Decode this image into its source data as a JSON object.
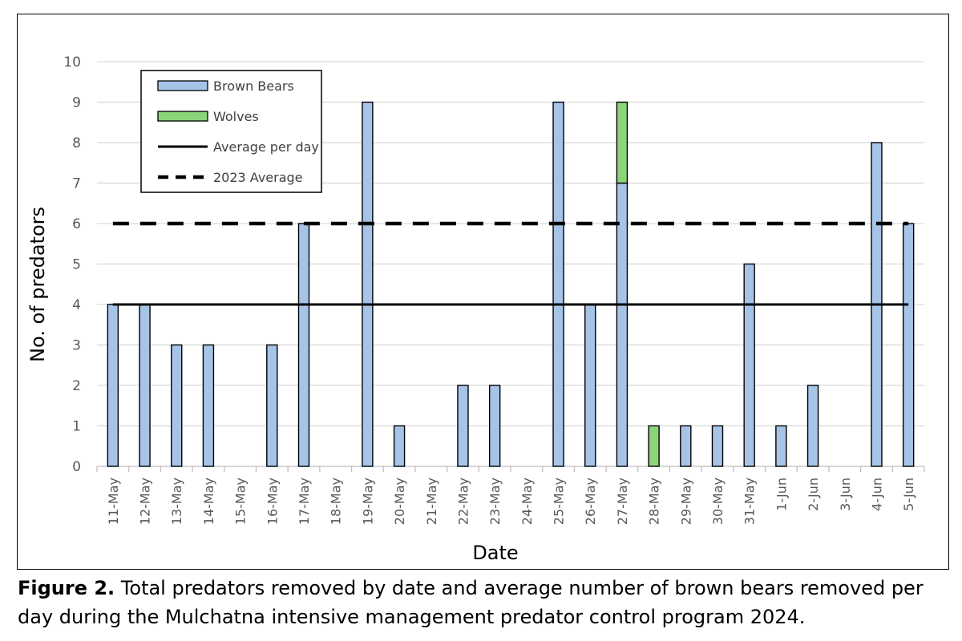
{
  "chart_data": {
    "type": "bar",
    "stacked": true,
    "xlabel": "Date",
    "ylabel": "No. of predators",
    "ylim": [
      0,
      10
    ],
    "yticks": [
      0,
      1,
      2,
      3,
      4,
      5,
      6,
      7,
      8,
      9,
      10
    ],
    "grid": true,
    "legend_position": "top-left",
    "categories": [
      "11-May",
      "12-May",
      "13-May",
      "14-May",
      "15-May",
      "16-May",
      "17-May",
      "18-May",
      "19-May",
      "20-May",
      "21-May",
      "22-May",
      "23-May",
      "24-May",
      "25-May",
      "26-May",
      "27-May",
      "28-May",
      "29-May",
      "30-May",
      "31-May",
      "1-Jun",
      "2-Jun",
      "3-Jun",
      "4-Jun",
      "5-Jun"
    ],
    "series": [
      {
        "name": "Brown Bears",
        "kind": "bar",
        "color": "#a6c4e8",
        "values": [
          4,
          4,
          3,
          3,
          0,
          3,
          6,
          0,
          9,
          1,
          0,
          2,
          2,
          0,
          9,
          4,
          7,
          0,
          1,
          1,
          5,
          1,
          2,
          0,
          8,
          6
        ]
      },
      {
        "name": "Wolves",
        "kind": "bar",
        "color": "#8cd47a",
        "values": [
          0,
          0,
          0,
          0,
          0,
          0,
          0,
          0,
          0,
          0,
          0,
          0,
          0,
          0,
          0,
          0,
          2,
          1,
          0,
          0,
          0,
          0,
          0,
          0,
          0,
          0
        ]
      },
      {
        "name": "Average per day",
        "kind": "line",
        "style": "solid",
        "value": 4
      },
      {
        "name": "2023 Average",
        "kind": "line",
        "style": "dashed",
        "value": 6
      }
    ]
  },
  "caption": {
    "label": "Figure 2.",
    "text": " Total predators removed by date and average number of brown bears removed per day during the Mulchatna intensive management predator control program 2024."
  }
}
